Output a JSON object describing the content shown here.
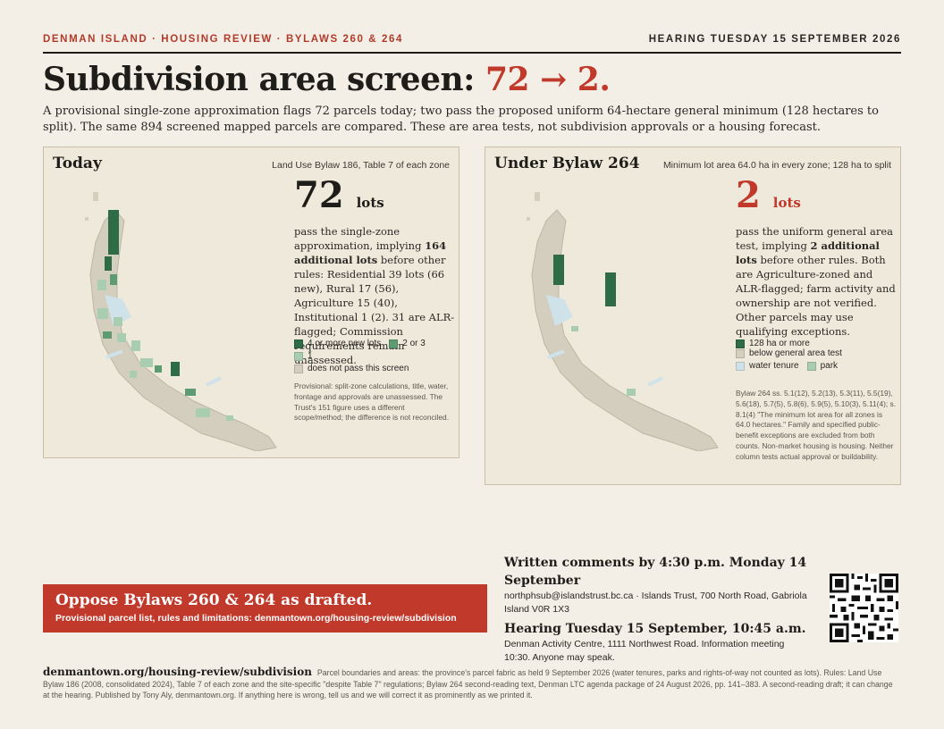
{
  "header": {
    "kicker": "DENMAN ISLAND · HOUSING REVIEW · BYLAWS 260 & 264",
    "hearing": "HEARING TUESDAY 15 SEPTEMBER 2026"
  },
  "headline": {
    "text": "Subdivision area screen: ",
    "numbers": "72 → 2."
  },
  "lede": "A provisional single-zone approximation flags 72 parcels today; two pass the proposed uniform 64-hectare general minimum (128 hectares to split). The same 894 screened mapped parcels are compared. These are area tests, not subdivision approvals or a housing forecast.",
  "today": {
    "title": "Today",
    "subtitle": "Land Use Bylaw 186, Table 7 of each zone",
    "number": "72",
    "unit": "lots",
    "desc_1": "pass the single-zone approximation, implying ",
    "desc_bold": "164 additional lots",
    "desc_2": " before other rules: Residential 39 lots (66 new), Rural 17 (56), Agriculture 15 (40), Institutional 1 (2). 31 are ALR-flagged; Commission requirements remain unassessed.",
    "legend": {
      "a": "4 or more new lots",
      "b": "2 or 3",
      "c": "1",
      "d": "does not pass this screen"
    },
    "note": "Provisional: split-zone calculations, title, water, frontage and approvals are unassessed. The Trust's 151 figure uses a different scope/method; the difference is not reconciled."
  },
  "bylaw264": {
    "title": "Under Bylaw 264",
    "subtitle": "Minimum lot area 64.0 ha in every zone; 128 ha to split",
    "number": "2",
    "unit": "lots",
    "desc_1": "pass the uniform general area test, implying ",
    "desc_bold": "2 additional lots",
    "desc_2": " before other rules. Both are Agriculture-zoned and ALR-flagged; farm activity and ownership are not verified. Other parcels may use qualifying exceptions.",
    "legend": {
      "a": "128 ha or more",
      "b": "below general area test",
      "c": "water tenure",
      "d": "park"
    },
    "note": "Bylaw 264 ss. 5.1(12), 5.2(13), 5.3(11), 5.5(19), 5.6(18), 5.7(5), 5.8(6), 5.9(5), 5.10(3), 5.11(4); s. 8.1(4) \"The minimum lot area for all zones is 64.0 hectares.\" Family and specified public-benefit exceptions are excluded from both counts. Non-market housing is housing. Neither column tests actual approval or buildability."
  },
  "cta": {
    "title": "Oppose Bylaws 260 & 264 as drafted.",
    "sub": "Provisional parcel list, rules and limitations: denmantown.org/housing-review/subdivision"
  },
  "comments": {
    "heading": "Written comments by 4:30 p.m. Monday 14 September",
    "detail": "northphsub@islandstrust.bc.ca · Islands Trust, 700 North Road, Gabriola Island V0R 1X3"
  },
  "hearing": {
    "heading": "Hearing Tuesday 15 September, 10:45 a.m.",
    "detail": "Denman Activity Centre, 1111 Northwest Road. Information meeting 10:30. Anyone may speak."
  },
  "footer": {
    "site": "denmantown.org/housing-review/subdivision",
    "text": "Parcel boundaries and areas: the province's parcel fabric as held 9 September 2026 (water tenures, parks and rights-of-way not counted as lots). Rules: Land Use Bylaw 186 (2008, consolidated 2024), Table 7 of each zone and the site-specific \"despite Table 7\" regulations; Bylaw 264 second-reading text, Denman LTC agenda package of 24 August 2026, pp. 141–383. A second-reading draft; it can change at the hearing. Published by Tony Aly, denmantown.org. If anything here is wrong, tell us and we will correct it as prominently as we printed it."
  },
  "colors": {
    "dark_green": "#2e6b47",
    "mid_green": "#5d9c72",
    "light_green": "#a8cdb0",
    "parcel": "#d4cebf",
    "water": "#cfe2ea",
    "accent_red": "#c0392b"
  }
}
